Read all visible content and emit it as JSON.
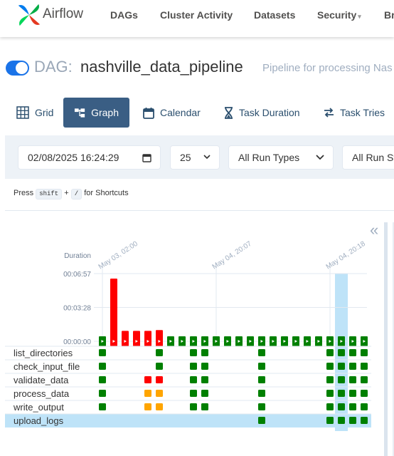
{
  "navbar": {
    "brand": "Airflow",
    "items": [
      "DAGs",
      "Cluster Activity",
      "Datasets",
      "Security",
      "Br"
    ],
    "security_caret": "▾"
  },
  "dag": {
    "prefix": "DAG:",
    "name": "nashville_data_pipeline",
    "description": "Pipeline for processing Nas",
    "paused": false
  },
  "tabs": [
    {
      "label": "Grid",
      "icon": "grid-icon",
      "active": false
    },
    {
      "label": "Graph",
      "icon": "graph-icon",
      "active": true
    },
    {
      "label": "Calendar",
      "icon": "calendar-icon",
      "active": false
    },
    {
      "label": "Task Duration",
      "icon": "hourglass-icon",
      "active": false
    },
    {
      "label": "Task Tries",
      "icon": "retry-icon",
      "active": false
    }
  ],
  "filters": {
    "datetime": "02/08/2025 16:24:29",
    "num_runs": "25",
    "run_type": "All Run Types",
    "run_state": "All Run St"
  },
  "shortcut": {
    "press": "Press",
    "key1": "shift",
    "plus": "+",
    "key2": "/",
    "suffix": "for Shortcuts"
  },
  "collapse_icon": "«",
  "colors": {
    "success": "#008000",
    "failed": "#ff0000",
    "upstream_failed": "#ffa500",
    "selected": "#bee3f8",
    "accent": "#3a5e84"
  },
  "chart_data": {
    "type": "bar",
    "ylabel": "Duration",
    "y_ticks": [
      "00:00:00",
      "00:03:28",
      "00:06:57"
    ],
    "ylim_seconds": [
      0,
      417
    ],
    "x_labels": [
      {
        "run": 0,
        "text": "May 03, 02:00"
      },
      {
        "run": 10,
        "text": "May 04, 20:07"
      },
      {
        "run": 20,
        "text": "May 04, 20:18"
      }
    ],
    "runs": [
      {
        "state": "success",
        "duration_s": 0
      },
      {
        "state": "failed",
        "duration_s": 417
      },
      {
        "state": "failed",
        "duration_s": 95
      },
      {
        "state": "failed",
        "duration_s": 95
      },
      {
        "state": "failed",
        "duration_s": 95
      },
      {
        "state": "failed",
        "duration_s": 100
      },
      {
        "state": "success",
        "duration_s": 0
      },
      {
        "state": "success",
        "duration_s": 0
      },
      {
        "state": "success",
        "duration_s": 0
      },
      {
        "state": "success",
        "duration_s": 0
      },
      {
        "state": "success",
        "duration_s": 0
      },
      {
        "state": "success",
        "duration_s": 0
      },
      {
        "state": "success",
        "duration_s": 0
      },
      {
        "state": "success",
        "duration_s": 0
      },
      {
        "state": "success",
        "duration_s": 0
      },
      {
        "state": "success",
        "duration_s": 0
      },
      {
        "state": "success",
        "duration_s": 0
      },
      {
        "state": "success",
        "duration_s": 0
      },
      {
        "state": "success",
        "duration_s": 0
      },
      {
        "state": "success",
        "duration_s": 0
      },
      {
        "state": "success",
        "duration_s": 0
      },
      {
        "state": "success",
        "duration_s": 0
      },
      {
        "state": "success",
        "duration_s": 0
      },
      {
        "state": "success",
        "duration_s": 0
      }
    ],
    "selected_run": 21,
    "tasks": [
      {
        "name": "list_directories",
        "states": {
          "0": "success",
          "5": "success",
          "8": "success",
          "9": "success",
          "14": "success",
          "20": "success",
          "21": "success",
          "22": "success",
          "23": "success"
        }
      },
      {
        "name": "check_input_file",
        "states": {
          "0": "success",
          "5": "success",
          "8": "success",
          "9": "success",
          "14": "success",
          "20": "success",
          "21": "success",
          "22": "success",
          "23": "success"
        }
      },
      {
        "name": "validate_data",
        "states": {
          "0": "success",
          "4": "failed",
          "5": "failed",
          "8": "success",
          "9": "success",
          "14": "success",
          "20": "success",
          "21": "success",
          "22": "success",
          "23": "success"
        }
      },
      {
        "name": "process_data",
        "states": {
          "0": "success",
          "4": "upstream_failed",
          "5": "upstream_failed",
          "8": "success",
          "9": "success",
          "14": "success",
          "20": "success",
          "21": "success",
          "22": "success",
          "23": "success"
        }
      },
      {
        "name": "write_output",
        "states": {
          "0": "success",
          "4": "upstream_failed",
          "5": "upstream_failed",
          "8": "success",
          "9": "success",
          "14": "success",
          "20": "success",
          "21": "success",
          "22": "success",
          "23": "success"
        }
      },
      {
        "name": "upload_logs",
        "states": {
          "14": "success",
          "20": "success",
          "21": "success",
          "22": "success",
          "23": "success"
        },
        "selected": true
      }
    ]
  }
}
